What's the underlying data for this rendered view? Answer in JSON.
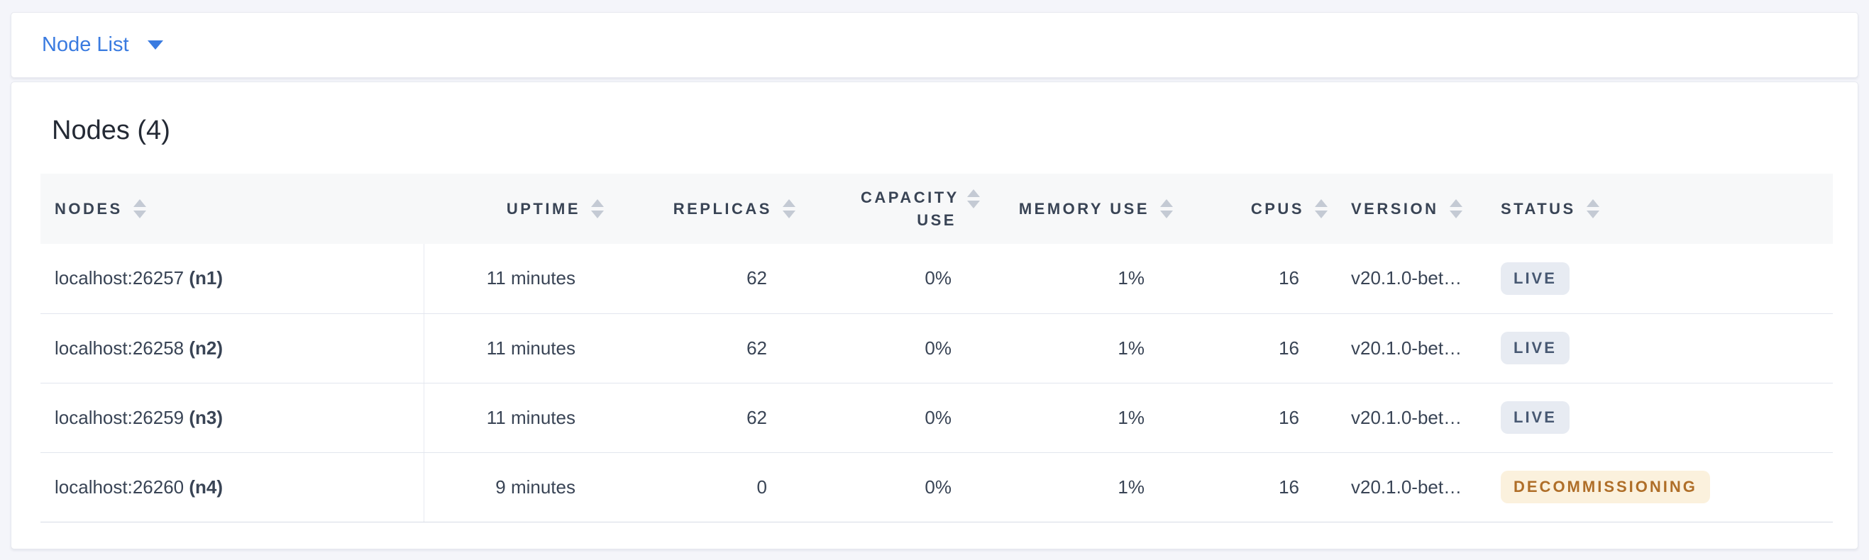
{
  "view_selector": {
    "label": "Node List"
  },
  "page": {
    "title": "Nodes (4)"
  },
  "table": {
    "columns": [
      {
        "label": "Nodes"
      },
      {
        "label": "Uptime"
      },
      {
        "label": "Replicas"
      },
      {
        "label": "Capacity Use"
      },
      {
        "label": "Memory Use"
      },
      {
        "label": "CPUs"
      },
      {
        "label": "Version"
      },
      {
        "label": "Status"
      }
    ],
    "rows": [
      {
        "address": "localhost:26257",
        "id": "(n1)",
        "uptime": "11 minutes",
        "replicas": "62",
        "capacity_use": "0%",
        "memory_use": "1%",
        "cpus": "16",
        "version": "v20.1.0-bet…",
        "status": "LIVE"
      },
      {
        "address": "localhost:26258",
        "id": "(n2)",
        "uptime": "11 minutes",
        "replicas": "62",
        "capacity_use": "0%",
        "memory_use": "1%",
        "cpus": "16",
        "version": "v20.1.0-bet…",
        "status": "LIVE"
      },
      {
        "address": "localhost:26259",
        "id": "(n3)",
        "uptime": "11 minutes",
        "replicas": "62",
        "capacity_use": "0%",
        "memory_use": "1%",
        "cpus": "16",
        "version": "v20.1.0-bet…",
        "status": "LIVE"
      },
      {
        "address": "localhost:26260",
        "id": "(n4)",
        "uptime": "9 minutes",
        "replicas": "0",
        "capacity_use": "0%",
        "memory_use": "1%",
        "cpus": "16",
        "version": "v20.1.0-bet…",
        "status": "DECOMMISSIONING"
      }
    ]
  },
  "colors": {
    "accent_blue": "#3a7be0",
    "live_badge_bg": "#e7ebf2",
    "live_badge_text": "#475872",
    "decommissioning_badge_bg": "#fbf1dd",
    "decommissioning_badge_text": "#af6e28",
    "page_background": "#f4f5fa",
    "header_row_background": "#f7f8f9"
  }
}
